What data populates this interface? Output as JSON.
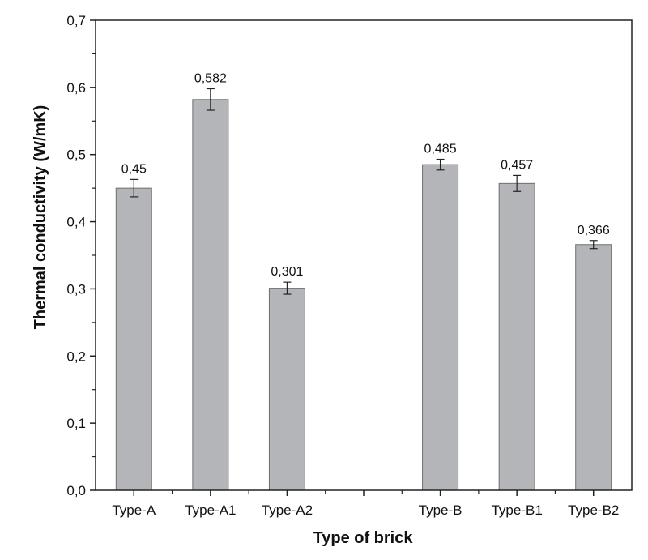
{
  "chart_data": {
    "type": "bar",
    "title": "",
    "xlabel": "Type of brick",
    "ylabel": "Thermal conductivity (W/mK)",
    "ylim": [
      0,
      0.7
    ],
    "yticks": [
      "0,0",
      "0,1",
      "0,2",
      "0,3",
      "0,4",
      "0,5",
      "0,6",
      "0,7"
    ],
    "categories": [
      "Type-A",
      "Type-A1",
      "Type-A2",
      "",
      "Type-B",
      "Type-B1",
      "Type-B2"
    ],
    "values": [
      0.45,
      0.582,
      0.301,
      null,
      0.485,
      0.457,
      0.366
    ],
    "value_labels": [
      "0,45",
      "0,582",
      "0,301",
      "",
      "0,485",
      "0,457",
      "0,366"
    ],
    "errors": [
      0.013,
      0.016,
      0.009,
      null,
      0.008,
      0.012,
      0.006
    ],
    "grid": false,
    "bar_color": "#b4b5b8",
    "bar_edge_color": "#6e6e6e",
    "axis_color": "#222222"
  }
}
